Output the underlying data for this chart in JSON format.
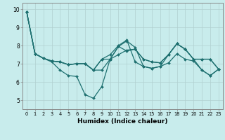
{
  "xlabel": "Humidex (Indice chaleur)",
  "background_color": "#c8ecec",
  "grid_color": "#b0d0d0",
  "line_color": "#1e7070",
  "xlim": [
    -0.5,
    23.5
  ],
  "ylim": [
    4.5,
    10.35
  ],
  "xticks": [
    0,
    1,
    2,
    3,
    4,
    5,
    6,
    7,
    8,
    9,
    10,
    11,
    12,
    13,
    14,
    15,
    16,
    17,
    18,
    19,
    20,
    21,
    22,
    23
  ],
  "yticks": [
    5,
    6,
    7,
    8,
    9,
    10
  ],
  "lines": [
    [
      9.85,
      7.55,
      7.3,
      7.1,
      6.65,
      6.35,
      6.3,
      5.3,
      5.1,
      5.75,
      7.25,
      7.95,
      8.25,
      7.9,
      6.85,
      6.75,
      6.85,
      7.05,
      7.55,
      7.25,
      7.15,
      6.65,
      6.35,
      6.7
    ],
    [
      9.85,
      7.55,
      7.3,
      7.15,
      7.1,
      6.95,
      7.0,
      7.0,
      6.65,
      6.65,
      7.25,
      7.5,
      7.75,
      7.8,
      7.25,
      7.1,
      7.05,
      7.5,
      8.1,
      7.8,
      7.25,
      7.25,
      7.25,
      6.7
    ],
    [
      9.85,
      7.55,
      7.3,
      7.15,
      7.1,
      6.95,
      7.0,
      7.0,
      6.65,
      7.25,
      7.5,
      8.0,
      8.3,
      7.1,
      6.85,
      6.75,
      6.85,
      7.5,
      8.1,
      7.8,
      7.25,
      6.65,
      6.35,
      6.7
    ],
    [
      9.85,
      7.55,
      7.3,
      7.15,
      7.1,
      6.95,
      7.0,
      7.0,
      6.65,
      7.25,
      7.25,
      7.95,
      7.7,
      7.8,
      7.25,
      7.1,
      7.05,
      7.5,
      8.1,
      7.8,
      7.25,
      7.25,
      7.25,
      6.7
    ]
  ]
}
